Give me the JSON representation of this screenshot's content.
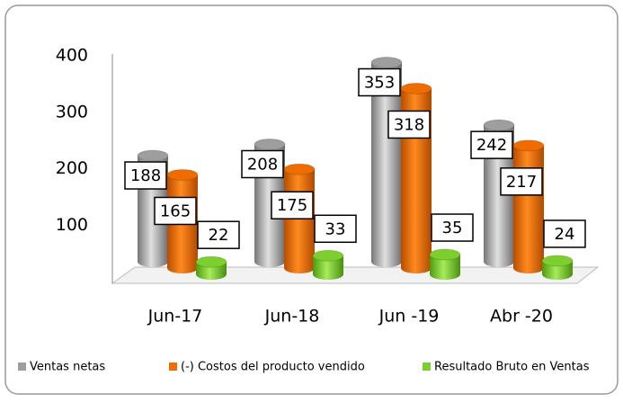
{
  "chart_data": {
    "type": "bar3d",
    "categories": [
      "Jun-17",
      "Jun-18",
      "Jun -19",
      "Abr -20"
    ],
    "series": [
      {
        "name": "Ventas netas",
        "color": "#9e9e9e",
        "values": [
          188,
          208,
          353,
          242
        ]
      },
      {
        "name": "(-) Costos del producto vendido",
        "color": "#ef6c00",
        "values": [
          165,
          175,
          318,
          217
        ]
      },
      {
        "name": "Resultado Bruto en Ventas",
        "color": "#7ccf2c",
        "values": [
          22,
          33,
          35,
          24
        ]
      }
    ],
    "ylim": [
      0,
      400
    ],
    "yticks": [
      100,
      200,
      300,
      400
    ],
    "legend": "bottom"
  }
}
